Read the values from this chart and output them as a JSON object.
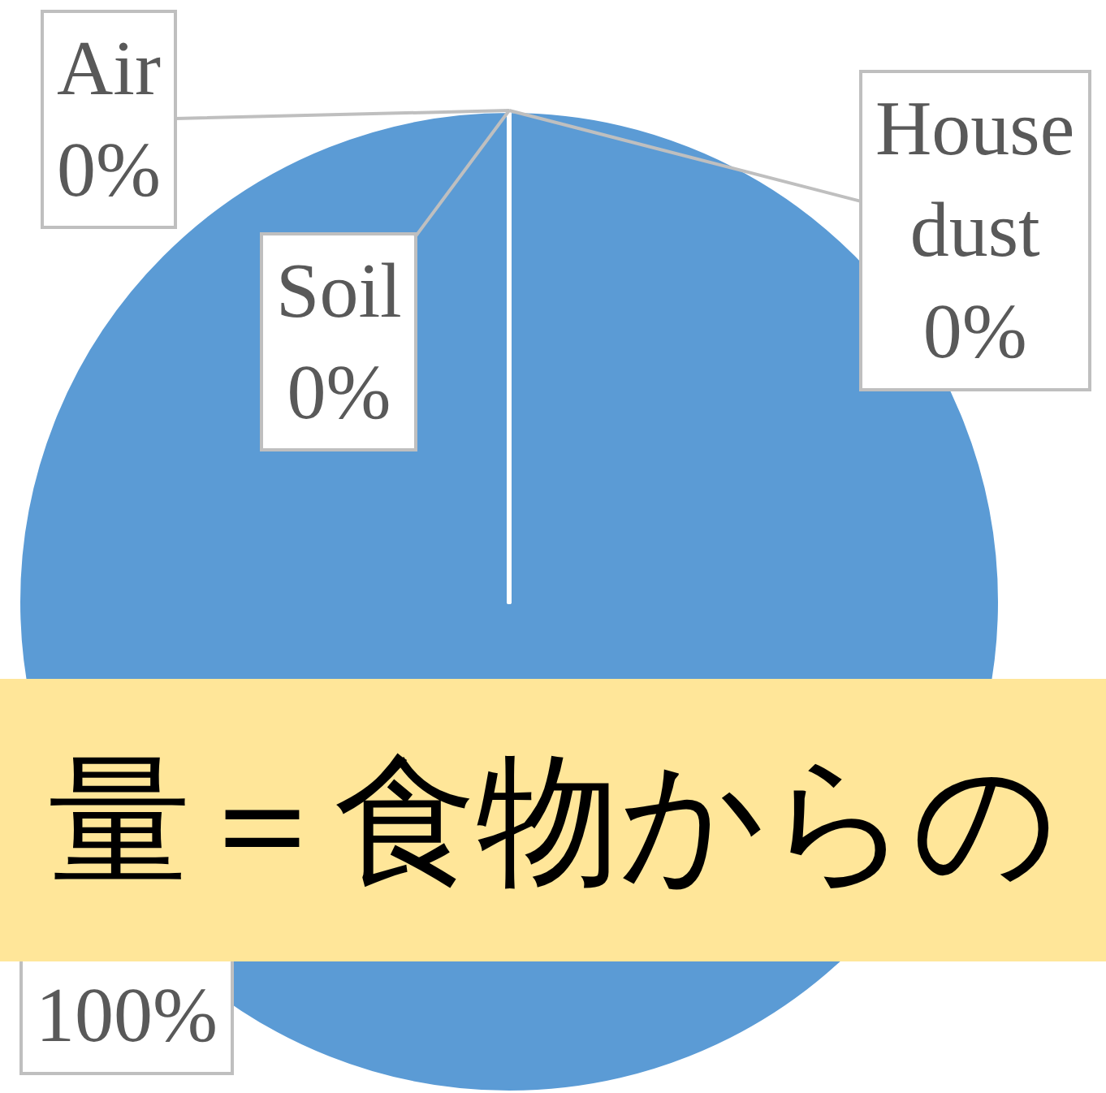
{
  "chart_data": {
    "type": "pie",
    "categories": [
      null,
      "Air",
      "Soil",
      "House dust"
    ],
    "values": [
      100,
      0,
      0,
      0
    ],
    "value_labels": [
      "100%",
      "0%",
      "0%",
      "0%"
    ],
    "colors": [
      "#5b9bd5",
      "#5b9bd5",
      "#5b9bd5",
      "#5b9bd5"
    ],
    "annotations": [
      "量＝食物からの"
    ]
  }
}
